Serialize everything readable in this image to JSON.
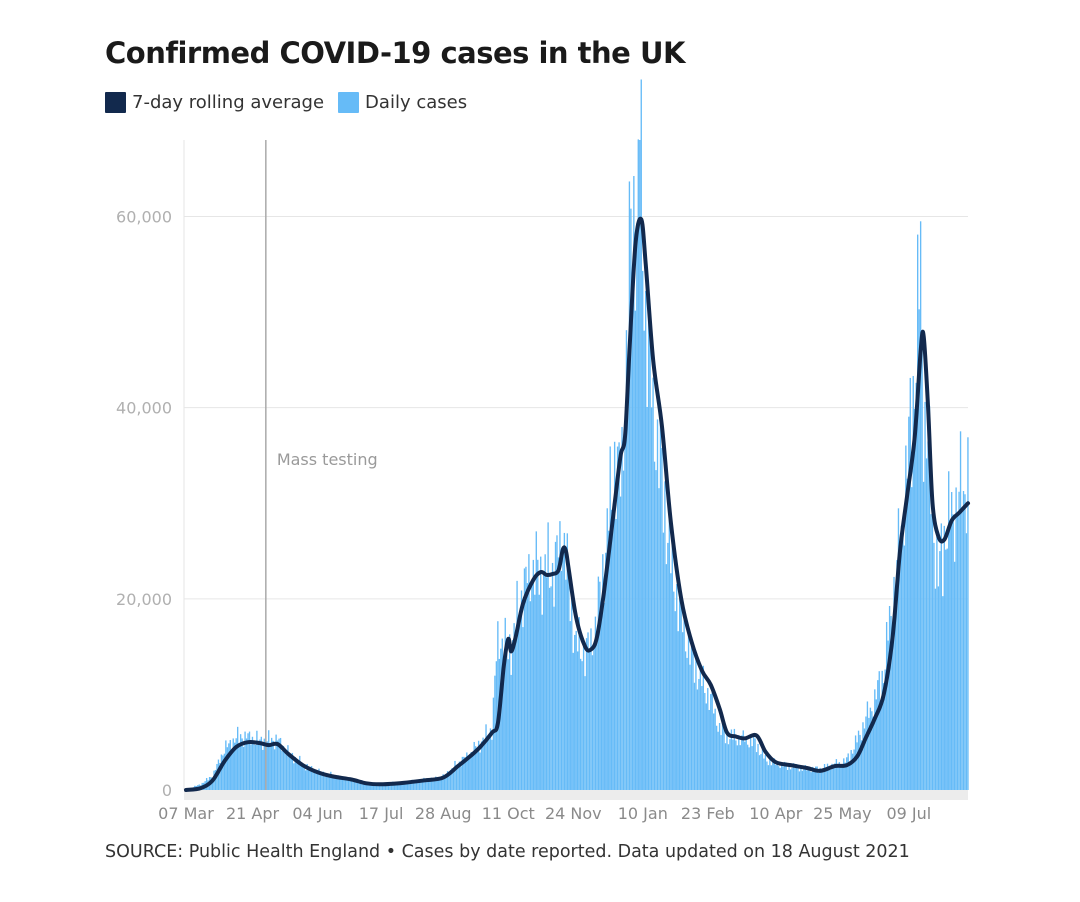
{
  "title": "Confirmed COVID-19 cases in the UK",
  "source": "SOURCE: Public Health England • Cases by date reported. Data updated on 18 August 2021",
  "colors": {
    "avg": "#12294d",
    "daily": "#66bbf7",
    "grid": "#e6e6e6",
    "marker": "#aaaaaa"
  },
  "chart_data": {
    "type": "bar",
    "x_start": "2020-03-07",
    "x_end": "2021-08-18",
    "ylim": [
      0,
      68000
    ],
    "yticks": [
      {
        "v": 0,
        "label": "0"
      },
      {
        "v": 20000,
        "label": "20,000"
      },
      {
        "v": 40000,
        "label": "40,000"
      },
      {
        "v": 60000,
        "label": "60,000"
      }
    ],
    "xticks": [
      {
        "date": "2020-03-07",
        "label": "07 Mar"
      },
      {
        "date": "2020-04-21",
        "label": "21 Apr"
      },
      {
        "date": "2020-06-04",
        "label": "04 Jun"
      },
      {
        "date": "2020-07-17",
        "label": "17 Jul"
      },
      {
        "date": "2020-08-28",
        "label": "28 Aug"
      },
      {
        "date": "2020-10-11",
        "label": "11 Oct"
      },
      {
        "date": "2020-11-24",
        "label": "24 Nov"
      },
      {
        "date": "2021-01-10",
        "label": "10 Jan"
      },
      {
        "date": "2021-02-23",
        "label": "23 Feb"
      },
      {
        "date": "2021-04-10",
        "label": "10 Apr"
      },
      {
        "date": "2021-05-25",
        "label": "25 May"
      },
      {
        "date": "2021-07-09",
        "label": "09 Jul"
      }
    ],
    "annotation": {
      "date": "2020-04-30",
      "label": "Mass testing"
    },
    "series": [
      {
        "name": "7-day rolling average",
        "kind": "line",
        "points": [
          [
            "2020-03-07",
            0
          ],
          [
            "2020-03-17",
            200
          ],
          [
            "2020-03-25",
            1000
          ],
          [
            "2020-04-02",
            3000
          ],
          [
            "2020-04-10",
            4500
          ],
          [
            "2020-04-18",
            5000
          ],
          [
            "2020-04-26",
            4900
          ],
          [
            "2020-05-02",
            4700
          ],
          [
            "2020-05-08",
            4800
          ],
          [
            "2020-05-15",
            3800
          ],
          [
            "2020-05-25",
            2600
          ],
          [
            "2020-06-05",
            1800
          ],
          [
            "2020-06-15",
            1400
          ],
          [
            "2020-06-27",
            1100
          ],
          [
            "2020-07-07",
            700
          ],
          [
            "2020-07-17",
            600
          ],
          [
            "2020-08-01",
            750
          ],
          [
            "2020-08-15",
            1000
          ],
          [
            "2020-08-28",
            1300
          ],
          [
            "2020-09-07",
            2500
          ],
          [
            "2020-09-15",
            3500
          ],
          [
            "2020-09-22",
            4500
          ],
          [
            "2020-09-30",
            6000
          ],
          [
            "2020-10-04",
            7000
          ],
          [
            "2020-10-08",
            13000
          ],
          [
            "2020-10-11",
            15800
          ],
          [
            "2020-10-13",
            14500
          ],
          [
            "2020-10-16",
            16000
          ],
          [
            "2020-10-21",
            19500
          ],
          [
            "2020-10-28",
            22000
          ],
          [
            "2020-11-02",
            22800
          ],
          [
            "2020-11-06",
            22500
          ],
          [
            "2020-11-10",
            22600
          ],
          [
            "2020-11-14",
            23000
          ],
          [
            "2020-11-17",
            25200
          ],
          [
            "2020-11-19",
            25000
          ],
          [
            "2020-11-21",
            23000
          ],
          [
            "2020-11-26",
            18000
          ],
          [
            "2020-12-02",
            15000
          ],
          [
            "2020-12-06",
            14700
          ],
          [
            "2020-12-10",
            16000
          ],
          [
            "2020-12-15",
            21000
          ],
          [
            "2020-12-22",
            30000
          ],
          [
            "2020-12-26",
            35000
          ],
          [
            "2020-12-29",
            37000
          ],
          [
            "2021-01-01",
            46000
          ],
          [
            "2021-01-05",
            57000
          ],
          [
            "2021-01-09",
            59700
          ],
          [
            "2021-01-12",
            55000
          ],
          [
            "2021-01-17",
            45000
          ],
          [
            "2021-01-23",
            38000
          ],
          [
            "2021-01-29",
            28000
          ],
          [
            "2021-02-05",
            20000
          ],
          [
            "2021-02-12",
            15500
          ],
          [
            "2021-02-19",
            12500
          ],
          [
            "2021-02-25",
            11000
          ],
          [
            "2021-03-03",
            8500
          ],
          [
            "2021-03-08",
            6000
          ],
          [
            "2021-03-14",
            5600
          ],
          [
            "2021-03-20",
            5400
          ],
          [
            "2021-03-28",
            5700
          ],
          [
            "2021-04-03",
            4000
          ],
          [
            "2021-04-10",
            2900
          ],
          [
            "2021-04-20",
            2600
          ],
          [
            "2021-05-01",
            2300
          ],
          [
            "2021-05-10",
            2000
          ],
          [
            "2021-05-20",
            2500
          ],
          [
            "2021-05-28",
            2600
          ],
          [
            "2021-06-04",
            3500
          ],
          [
            "2021-06-10",
            5500
          ],
          [
            "2021-06-16",
            7500
          ],
          [
            "2021-06-22",
            10000
          ],
          [
            "2021-06-28",
            16000
          ],
          [
            "2021-07-03",
            25000
          ],
          [
            "2021-07-08",
            31000
          ],
          [
            "2021-07-13",
            37000
          ],
          [
            "2021-07-17",
            46000
          ],
          [
            "2021-07-19",
            47500
          ],
          [
            "2021-07-22",
            40000
          ],
          [
            "2021-07-25",
            30000
          ],
          [
            "2021-07-29",
            26500
          ],
          [
            "2021-08-02",
            26200
          ],
          [
            "2021-08-07",
            28200
          ],
          [
            "2021-08-12",
            29000
          ],
          [
            "2021-08-18",
            30000
          ]
        ]
      },
      {
        "name": "Daily cases",
        "kind": "bar",
        "anchors": [
          [
            "2020-03-07",
            50
          ],
          [
            "2020-03-17",
            600
          ],
          [
            "2020-03-25",
            1500
          ],
          [
            "2020-04-02",
            4300
          ],
          [
            "2020-04-10",
            5500
          ],
          [
            "2020-04-18",
            5600
          ],
          [
            "2020-04-26",
            5200
          ],
          [
            "2020-05-02",
            5200
          ],
          [
            "2020-05-08",
            5300
          ],
          [
            "2020-05-15",
            4000
          ],
          [
            "2020-05-25",
            2700
          ],
          [
            "2020-06-05",
            1900
          ],
          [
            "2020-06-15",
            1500
          ],
          [
            "2020-06-27",
            1100
          ],
          [
            "2020-07-07",
            750
          ],
          [
            "2020-07-17",
            650
          ],
          [
            "2020-08-01",
            800
          ],
          [
            "2020-08-15",
            1050
          ],
          [
            "2020-08-28",
            1400
          ],
          [
            "2020-09-07",
            2800
          ],
          [
            "2020-09-15",
            3800
          ],
          [
            "2020-09-22",
            4900
          ],
          [
            "2020-09-30",
            6500
          ],
          [
            "2020-10-04",
            16000
          ],
          [
            "2020-10-08",
            15500
          ],
          [
            "2020-10-11",
            15000
          ],
          [
            "2020-10-13",
            15000
          ],
          [
            "2020-10-16",
            17500
          ],
          [
            "2020-10-21",
            21000
          ],
          [
            "2020-10-28",
            23500
          ],
          [
            "2020-11-02",
            22500
          ],
          [
            "2020-11-06",
            23500
          ],
          [
            "2020-11-10",
            23000
          ],
          [
            "2020-11-14",
            25000
          ],
          [
            "2020-11-17",
            27000
          ],
          [
            "2020-11-19",
            25000
          ],
          [
            "2020-11-21",
            21000
          ],
          [
            "2020-11-26",
            15500
          ],
          [
            "2020-12-02",
            14500
          ],
          [
            "2020-12-06",
            15500
          ],
          [
            "2020-12-10",
            18000
          ],
          [
            "2020-12-15",
            24000
          ],
          [
            "2020-12-22",
            35000
          ],
          [
            "2020-12-26",
            32000
          ],
          [
            "2020-12-29",
            41000
          ],
          [
            "2021-01-01",
            55000
          ],
          [
            "2021-01-05",
            61000
          ],
          [
            "2021-01-09",
            63000
          ],
          [
            "2021-01-12",
            50000
          ],
          [
            "2021-01-17",
            40000
          ],
          [
            "2021-01-23",
            33000
          ],
          [
            "2021-01-29",
            24000
          ],
          [
            "2021-02-05",
            18000
          ],
          [
            "2021-02-12",
            14000
          ],
          [
            "2021-02-19",
            11500
          ],
          [
            "2021-02-25",
            9500
          ],
          [
            "2021-03-03",
            6500
          ],
          [
            "2021-03-08",
            5700
          ],
          [
            "2021-03-14",
            5500
          ],
          [
            "2021-03-20",
            5400
          ],
          [
            "2021-03-28",
            4800
          ],
          [
            "2021-04-03",
            3200
          ],
          [
            "2021-04-10",
            2800
          ],
          [
            "2021-04-20",
            2500
          ],
          [
            "2021-05-01",
            2200
          ],
          [
            "2021-05-10",
            2200
          ],
          [
            "2021-05-20",
            2700
          ],
          [
            "2021-05-28",
            3100
          ],
          [
            "2021-06-04",
            5200
          ],
          [
            "2021-06-10",
            7500
          ],
          [
            "2021-06-16",
            9500
          ],
          [
            "2021-06-22",
            12500
          ],
          [
            "2021-06-28",
            20000
          ],
          [
            "2021-07-03",
            26000
          ],
          [
            "2021-07-08",
            34000
          ],
          [
            "2021-07-13",
            44000
          ],
          [
            "2021-07-17",
            54700
          ],
          [
            "2021-07-19",
            40000
          ],
          [
            "2021-07-22",
            36000
          ],
          [
            "2021-07-25",
            29000
          ],
          [
            "2021-07-29",
            22000
          ],
          [
            "2021-08-02",
            27000
          ],
          [
            "2021-08-07",
            29000
          ],
          [
            "2021-08-12",
            31000
          ],
          [
            "2021-08-18",
            33000
          ]
        ]
      }
    ]
  }
}
